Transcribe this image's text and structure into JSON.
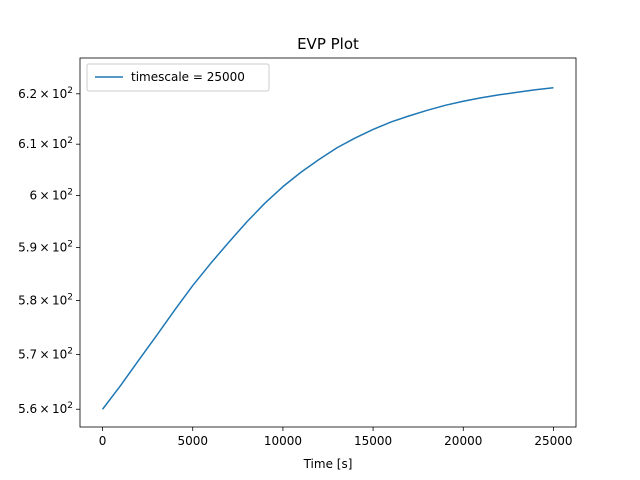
{
  "chart_data": {
    "type": "line",
    "title": "EVP Plot",
    "xlabel": "Time [s]",
    "ylabel": "",
    "x_scale": "linear",
    "y_scale": "log",
    "xlim": [
      -1250,
      26250
    ],
    "ylim": [
      556.8,
      627.2
    ],
    "grid": false,
    "legend_position": "upper left",
    "x_ticks": [
      0,
      5000,
      10000,
      15000,
      20000,
      25000
    ],
    "x_tick_labels": [
      "0",
      "5000",
      "10000",
      "15000",
      "20000",
      "25000"
    ],
    "y_ticks": [
      560,
      570,
      580,
      590,
      600,
      610,
      620
    ],
    "y_tick_labels": [
      {
        "mantissa": "5.6",
        "sup": "2"
      },
      {
        "mantissa": "5.7",
        "sup": "2"
      },
      {
        "mantissa": "5.8",
        "sup": "2"
      },
      {
        "mantissa": "5.9",
        "sup": "2"
      },
      {
        "mantissa": "6",
        "sup": "2"
      },
      {
        "mantissa": "6.1",
        "sup": "2"
      },
      {
        "mantissa": "6.2",
        "sup": "2"
      }
    ],
    "series": [
      {
        "name": "timescale = 25000",
        "color": "#1f77b4",
        "x": [
          0,
          1000,
          2000,
          3000,
          4000,
          5000,
          6000,
          7000,
          8000,
          9000,
          10000,
          11000,
          12000,
          13000,
          14000,
          15000,
          16000,
          17000,
          18000,
          19000,
          20000,
          21000,
          22000,
          23000,
          24000,
          25000
        ],
        "y": [
          560.0,
          564.3,
          568.9,
          573.5,
          578.2,
          582.8,
          587.0,
          591.0,
          594.9,
          598.5,
          601.7,
          604.5,
          607.0,
          609.3,
          611.2,
          612.9,
          614.4,
          615.6,
          616.7,
          617.7,
          618.5,
          619.2,
          619.8,
          620.3,
          620.8,
          621.2
        ]
      }
    ]
  }
}
